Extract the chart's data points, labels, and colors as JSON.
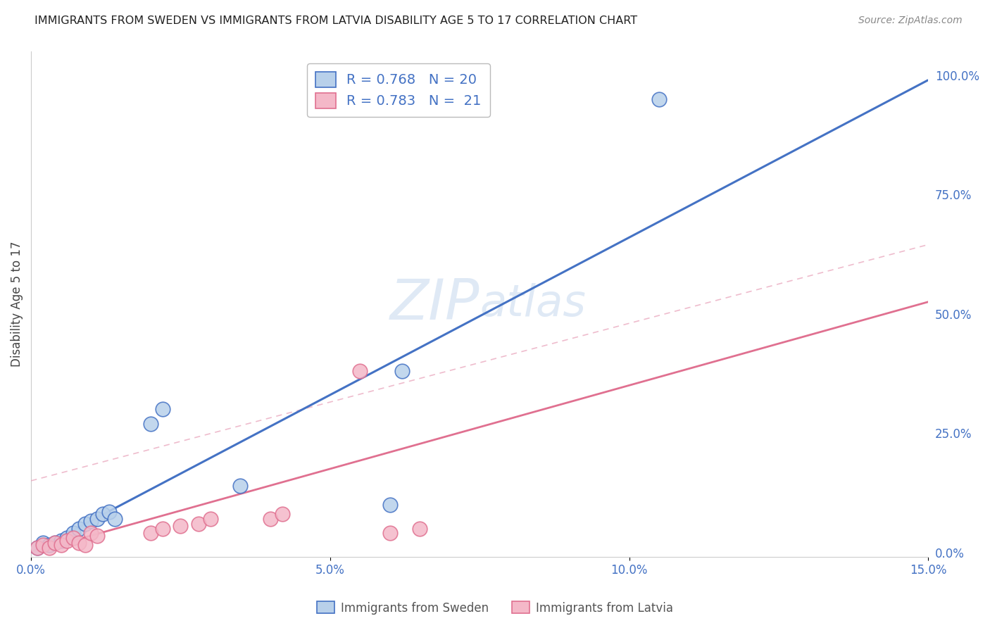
{
  "title": "IMMIGRANTS FROM SWEDEN VS IMMIGRANTS FROM LATVIA DISABILITY AGE 5 TO 17 CORRELATION CHART",
  "source": "Source: ZipAtlas.com",
  "ylabel": "Disability Age 5 to 17",
  "xlim": [
    0.0,
    0.15
  ],
  "ylim": [
    -0.01,
    1.05
  ],
  "xticks": [
    0.0,
    0.05,
    0.1,
    0.15
  ],
  "xticklabels": [
    "0.0%",
    "5.0%",
    "10.0%",
    "15.0%"
  ],
  "yticks_right": [
    0.0,
    0.25,
    0.5,
    0.75,
    1.0
  ],
  "yticklabels_right": [
    "0.0%",
    "25.0%",
    "50.0%",
    "75.0%",
    "100.0%"
  ],
  "sweden_fill_color": "#b8d0ea",
  "sweden_edge_color": "#4472c4",
  "latvia_fill_color": "#f4b8c8",
  "latvia_edge_color": "#e07090",
  "sweden_line_color": "#4472c4",
  "latvia_line_color": "#e07090",
  "latvia_conf_color": "#e8a0b8",
  "tick_color": "#4472c4",
  "watermark": "ZIPatlas",
  "legend_sweden_label": "R = 0.768   N = 20",
  "legend_latvia_label": "R = 0.783   N =  21",
  "sweden_R": 0.768,
  "sweden_N": 20,
  "latvia_R": 0.783,
  "latvia_N": 21,
  "sweden_x": [
    0.001,
    0.002,
    0.003,
    0.004,
    0.005,
    0.006,
    0.007,
    0.008,
    0.009,
    0.01,
    0.011,
    0.012,
    0.013,
    0.014,
    0.02,
    0.022,
    0.035,
    0.06,
    0.062,
    0.105
  ],
  "sweden_y": [
    0.01,
    0.02,
    0.015,
    0.02,
    0.025,
    0.03,
    0.04,
    0.05,
    0.06,
    0.065,
    0.07,
    0.08,
    0.085,
    0.07,
    0.27,
    0.3,
    0.14,
    0.1,
    0.38,
    0.95
  ],
  "latvia_x": [
    0.001,
    0.002,
    0.003,
    0.004,
    0.005,
    0.006,
    0.007,
    0.008,
    0.009,
    0.01,
    0.011,
    0.02,
    0.022,
    0.025,
    0.028,
    0.03,
    0.04,
    0.042,
    0.055,
    0.06,
    0.065
  ],
  "latvia_y": [
    0.01,
    0.015,
    0.01,
    0.02,
    0.015,
    0.025,
    0.03,
    0.02,
    0.015,
    0.04,
    0.035,
    0.04,
    0.05,
    0.055,
    0.06,
    0.07,
    0.07,
    0.08,
    0.38,
    0.04,
    0.05
  ],
  "sweden_slope": 6.6,
  "sweden_intercept": 0.0,
  "latvia_slope": 3.5,
  "latvia_intercept": 0.0,
  "latvia_conf_slope": 3.3,
  "latvia_conf_intercept": 0.15,
  "background_color": "#ffffff",
  "grid_color": "#d8d8d8",
  "title_fontsize": 11.5,
  "source_fontsize": 10,
  "tick_fontsize": 12,
  "legend_fontsize": 14,
  "ylabel_fontsize": 12
}
